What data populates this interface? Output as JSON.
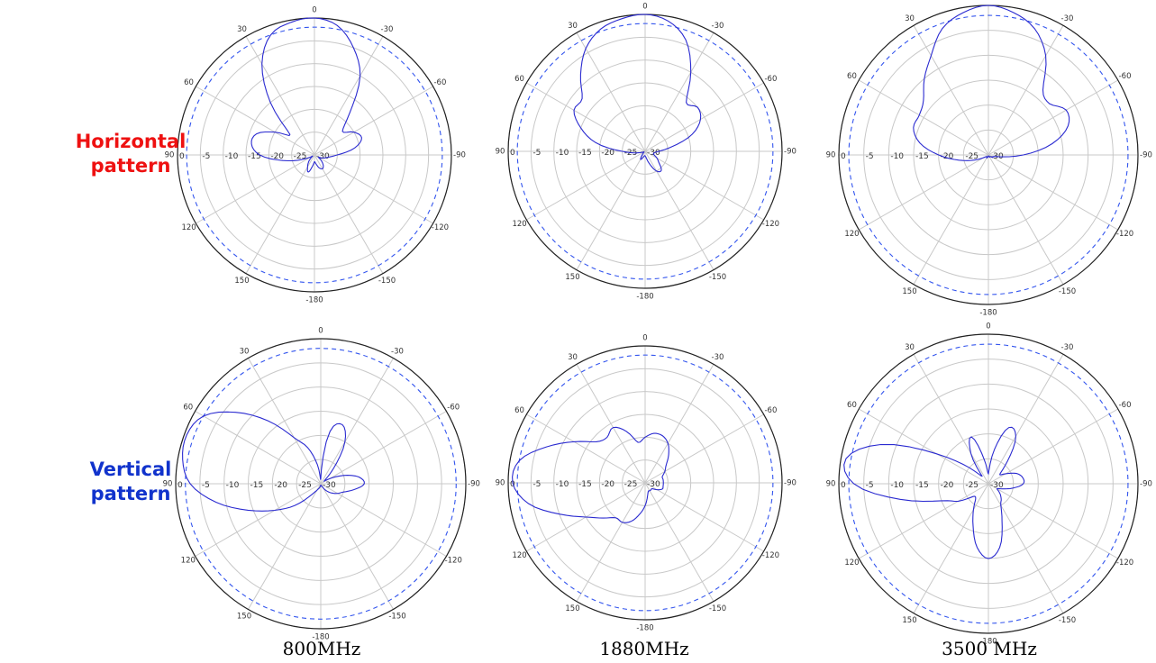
{
  "row_labels": {
    "horizontal": "Horizontal\npattern",
    "vertical": "Vertical\npattern"
  },
  "column_labels": [
    "800MHz",
    "1880MHz",
    "3500 MHz"
  ],
  "colors": {
    "horizontal_label": "#ee1111",
    "vertical_label": "#1133cc",
    "trace": "#2a2ad0",
    "reference": "#3355ee",
    "grid": "#c8c8c8",
    "outer_ring": "#222222"
  },
  "chart_data": [
    {
      "type": "polar",
      "plane": "horizontal",
      "frequency": "800MHz",
      "angular_ticks": [
        "0",
        "-30",
        "-60",
        "-90",
        "-120",
        "-150",
        "-180",
        "150",
        "120",
        "90",
        "60",
        "30"
      ],
      "radial_ticks": [
        "0",
        "-5",
        "-10",
        "-15",
        "-20",
        "-25",
        "-30"
      ],
      "r_range_db": [
        -30,
        0
      ],
      "angle_direction": "clockwise-negative",
      "reference_level_db": -2,
      "theta_deg": [
        0,
        10,
        20,
        30,
        40,
        50,
        60,
        70,
        80,
        90,
        100,
        110,
        120,
        130,
        140,
        150,
        160,
        170,
        180,
        190,
        200,
        210,
        220,
        230,
        240,
        250,
        260,
        270,
        280,
        290,
        300,
        310,
        320,
        330,
        340,
        350
      ],
      "gain_db": [
        0,
        -1.2,
        -5,
        -10,
        -18,
        -22,
        -20,
        -19,
        -21,
        -25,
        -27,
        -28,
        -29,
        -28,
        -27,
        -26.5,
        -27,
        -28,
        -28.5,
        -27.5,
        -26,
        -27,
        -28,
        -29,
        -29.5,
        -27,
        -23,
        -18,
        -16,
        -16.5,
        -20,
        -23,
        -15,
        -7,
        -2,
        -0.5
      ]
    },
    {
      "type": "polar",
      "plane": "horizontal",
      "frequency": "1880MHz",
      "angular_ticks": [
        "0",
        "-30",
        "-60",
        "-90",
        "-120",
        "-150",
        "-180",
        "150",
        "120",
        "90",
        "60",
        "30"
      ],
      "radial_ticks": [
        "0",
        "-5",
        "-10",
        "-15",
        "-20",
        "-25",
        "-30"
      ],
      "r_range_db": [
        -30,
        0
      ],
      "angle_direction": "clockwise-negative",
      "reference_level_db": -2,
      "theta_deg": [
        0,
        10,
        20,
        30,
        40,
        50,
        60,
        70,
        80,
        90,
        100,
        110,
        120,
        130,
        140,
        150,
        160,
        170,
        180,
        190,
        200,
        210,
        220,
        230,
        240,
        250,
        260,
        270,
        280,
        290,
        300,
        310,
        320,
        330,
        340,
        350
      ],
      "gain_db": [
        0,
        -1,
        -4,
        -10,
        -16,
        -15,
        -16,
        -19,
        -24,
        -27,
        -28,
        -28,
        -27,
        -26,
        -24.5,
        -25,
        -27,
        -28.5,
        -29,
        -29,
        -28.5,
        -28,
        -29,
        -29.5,
        -29.7,
        -29.5,
        -28,
        -25,
        -19,
        -15,
        -12,
        -12,
        -8,
        -4,
        -1.5,
        -0.5
      ]
    },
    {
      "type": "polar",
      "plane": "horizontal",
      "frequency": "3500 MHz",
      "angular_ticks": [
        "0",
        "-30",
        "-60",
        "-90",
        "-120",
        "-150",
        "-180",
        "150",
        "120",
        "90",
        "60",
        "30"
      ],
      "radial_ticks": [
        "0",
        "-5",
        "-10",
        "-15",
        "-20",
        "-25",
        "-30"
      ],
      "r_range_db": [
        -30,
        0
      ],
      "angle_direction": "clockwise-negative",
      "reference_level_db": -2,
      "theta_deg": [
        0,
        10,
        20,
        30,
        40,
        50,
        60,
        70,
        80,
        90,
        100,
        110,
        120,
        130,
        140,
        150,
        160,
        170,
        180,
        190,
        200,
        210,
        220,
        230,
        240,
        250,
        260,
        270,
        280,
        290,
        300,
        310,
        320,
        330,
        340,
        350
      ],
      "gain_db": [
        0,
        -1,
        -3,
        -7,
        -13,
        -14,
        -12,
        -13,
        -17,
        -23,
        -28,
        -29,
        -29,
        -29.5,
        -29.5,
        -29.5,
        -29.7,
        -29.8,
        -29.8,
        -29.7,
        -29.5,
        -29.3,
        -29.5,
        -29.5,
        -29,
        -27,
        -24,
        -20,
        -16,
        -14,
        -14,
        -13,
        -10,
        -7,
        -3,
        -1
      ]
    },
    {
      "type": "polar",
      "plane": "vertical",
      "frequency": "800MHz",
      "angular_ticks": [
        "0",
        "-30",
        "-60",
        "-90",
        "-120",
        "-150",
        "-180",
        "150",
        "120",
        "90",
        "60",
        "30"
      ],
      "radial_ticks": [
        "0",
        "-5",
        "-10",
        "-15",
        "-20",
        "-25",
        "-30"
      ],
      "r_range_db": [
        -30,
        0
      ],
      "angle_direction": "clockwise-negative",
      "reference_level_db": -2,
      "theta_deg": [
        0,
        10,
        20,
        30,
        40,
        50,
        60,
        70,
        80,
        90,
        100,
        110,
        120,
        130,
        140,
        150,
        160,
        170,
        180,
        190,
        200,
        210,
        220,
        230,
        240,
        250,
        260,
        270,
        280,
        290,
        300,
        310,
        320,
        330,
        340,
        350
      ],
      "gain_db": [
        -29,
        -19,
        -17,
        -20,
        -26,
        -29,
        -28,
        -25,
        -22,
        -21,
        -23,
        -25,
        -26,
        -27,
        -28,
        -29,
        -29.5,
        -29.5,
        -29.7,
        -29.5,
        -29,
        -28.5,
        -27,
        -23,
        -19,
        -14,
        -8,
        -3,
        -1,
        -0.5,
        -2,
        -7,
        -13,
        -19,
        -22,
        -26
      ]
    },
    {
      "type": "polar",
      "plane": "vertical",
      "frequency": "1880MHz",
      "angular_ticks": [
        "0",
        "-30",
        "-60",
        "-90",
        "-120",
        "-150",
        "-180",
        "150",
        "120",
        "90",
        "60",
        "30"
      ],
      "radial_ticks": [
        "0",
        "-5",
        "-10",
        "-15",
        "-20",
        "-25",
        "-30"
      ],
      "r_range_db": [
        -30,
        0
      ],
      "angle_direction": "clockwise-negative",
      "reference_level_db": -2,
      "theta_deg": [
        0,
        10,
        20,
        30,
        40,
        50,
        60,
        70,
        80,
        90,
        100,
        110,
        120,
        130,
        140,
        150,
        160,
        170,
        180,
        190,
        200,
        210,
        220,
        230,
        240,
        250,
        260,
        270,
        280,
        290,
        300,
        310,
        320,
        330,
        340,
        350
      ],
      "gain_db": [
        -20,
        -19,
        -19,
        -20,
        -22,
        -24,
        -25,
        -26,
        -26,
        -26,
        -26,
        -26,
        -27,
        -28,
        -28,
        -28,
        -28,
        -27,
        -25,
        -23,
        -21,
        -20,
        -20,
        -18,
        -15,
        -10,
        -4,
        -1,
        -2,
        -7,
        -12,
        -16,
        -17,
        -16,
        -18,
        -21
      ]
    },
    {
      "type": "polar",
      "plane": "vertical",
      "frequency": "3500 MHz",
      "angular_ticks": [
        "0",
        "-30",
        "-60",
        "-90",
        "-120",
        "-150",
        "-180",
        "150",
        "120",
        "90",
        "60",
        "30"
      ],
      "radial_ticks": [
        "0",
        "-5",
        "-10",
        "-15",
        "-20",
        "-25",
        "-30"
      ],
      "r_range_db": [
        -30,
        0
      ],
      "angle_direction": "clockwise-negative",
      "reference_level_db": -2,
      "theta_deg": [
        0,
        10,
        20,
        30,
        40,
        50,
        60,
        70,
        80,
        90,
        100,
        110,
        120,
        130,
        140,
        150,
        160,
        170,
        180,
        190,
        200,
        210,
        220,
        230,
        240,
        250,
        260,
        270,
        280,
        290,
        300,
        310,
        320,
        330,
        340,
        350
      ],
      "gain_db": [
        -28,
        -23,
        -18,
        -19,
        -24,
        -27,
        -26,
        -24,
        -23,
        -23,
        -25,
        -27,
        -28,
        -27,
        -26,
        -25,
        -22,
        -17,
        -15,
        -17,
        -21,
        -24,
        -26,
        -26,
        -23,
        -20,
        -12,
        -3,
        -1,
        -7,
        -18,
        -25,
        -28,
        -23,
        -20,
        -25
      ]
    }
  ]
}
